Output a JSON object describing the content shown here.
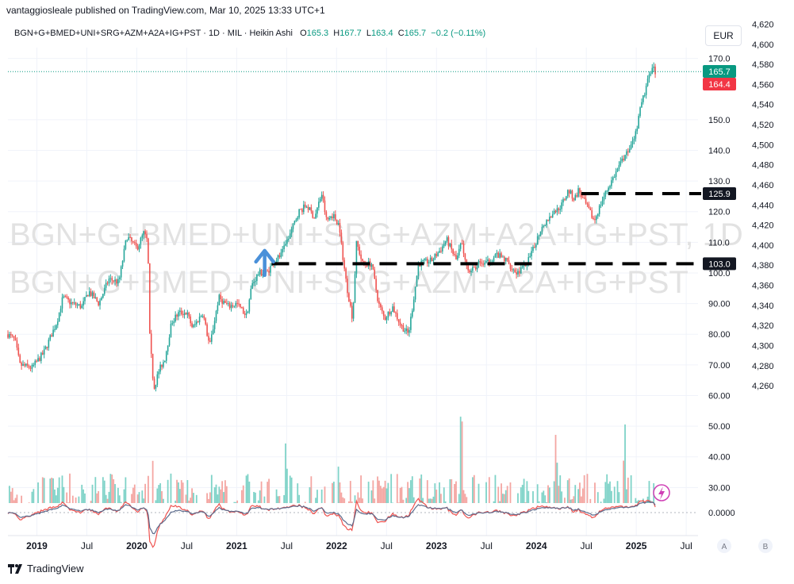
{
  "header": {
    "publish_line": "vantaggiosleale published on TradingView.com, Mar 10, 2025 13:33 UTC+1"
  },
  "legend": {
    "symbol": "BGN+G+BMED+UNI+SRG+AZM+A2A+IG+PST · 1D · MIL · Heikin Ashi",
    "open_label": "O",
    "open_value": "165.3",
    "high_label": "H",
    "high_value": "167.7",
    "low_label": "L",
    "low_value": "163.4",
    "close_label": "C",
    "close_value": "165.7",
    "change": "−0.2 (−0.11%)"
  },
  "currency": "EUR",
  "watermark": {
    "line1": "BGN+G+BMED+UNI+SRG+AZM+A2A+IG+PST, 1D",
    "line2": "BGN+G+BMED+UNI+SRG+AZM+A2A+IG+PST"
  },
  "footer": {
    "brand": "TradingView"
  },
  "colors": {
    "up": "#26a69a",
    "down": "#ef5350",
    "vol_up": "#7fd3c8",
    "vol_down": "#f4a6a2",
    "arrow": "#4a90d9",
    "last_price_line": "#089981"
  },
  "chart_data": {
    "type": "candlestick",
    "style": "Heikin Ashi",
    "timeframe": "1D",
    "exchange": "MIL",
    "currency": "EUR",
    "price_axis": {
      "labels": [
        "170.0",
        "150.0",
        "140.0",
        "130.0",
        "120.0",
        "110.0",
        "100.0",
        "90.00",
        "80.00",
        "70.00",
        "60.00",
        "50.00",
        "40.00",
        "30.00"
      ],
      "values": [
        170,
        150,
        140,
        130,
        120,
        110,
        100,
        90,
        80,
        70,
        60,
        50,
        40,
        30
      ]
    },
    "secondary_axis": {
      "labels": [
        "4,620",
        "4,600",
        "4,580",
        "4,560",
        "4,540",
        "4,520",
        "4,500",
        "4,480",
        "4,460",
        "4,440",
        "4,420",
        "4,400",
        "4,380",
        "4,360",
        "4,340",
        "4,320",
        "4,300",
        "4,280",
        "4,260"
      ],
      "values": [
        4620,
        4600,
        4580,
        4560,
        4540,
        4520,
        4500,
        4480,
        4460,
        4440,
        4420,
        4400,
        4380,
        4360,
        4340,
        4320,
        4300,
        4280,
        4260
      ]
    },
    "indicator_axis": {
      "labels": [
        "0.0000"
      ],
      "values": [
        0
      ]
    },
    "time_axis": {
      "labels": [
        "2019",
        "Jul",
        "2020",
        "Jul",
        "2021",
        "Jul",
        "2022",
        "Jul",
        "2023",
        "Jul",
        "2024",
        "Jul",
        "2025",
        "Jul"
      ],
      "t": [
        2019.0,
        2019.5,
        2020.0,
        2020.5,
        2021.0,
        2021.5,
        2022.0,
        2022.5,
        2023.0,
        2023.5,
        2024.0,
        2024.5,
        2025.0,
        2025.5
      ],
      "bold": [
        true,
        false,
        true,
        false,
        true,
        false,
        true,
        false,
        true,
        false,
        true,
        false,
        true,
        false
      ]
    },
    "price_path": {
      "t": [
        2018.71,
        2018.78,
        2018.83,
        2018.95,
        2019.07,
        2019.2,
        2019.26,
        2019.35,
        2019.45,
        2019.52,
        2019.62,
        2019.72,
        2019.82,
        2019.9,
        2020.0,
        2020.07,
        2020.11,
        2020.13,
        2020.17,
        2020.22,
        2020.28,
        2020.35,
        2020.42,
        2020.5,
        2020.56,
        2020.66,
        2020.73,
        2020.82,
        2020.92,
        2021.0,
        2021.1,
        2021.15,
        2021.22,
        2021.3,
        2021.38,
        2021.45,
        2021.55,
        2021.62,
        2021.7,
        2021.78,
        2021.85,
        2021.9,
        2021.96,
        2022.02,
        2022.1,
        2022.16,
        2022.2,
        2022.26,
        2022.35,
        2022.42,
        2022.48,
        2022.56,
        2022.64,
        2022.72,
        2022.76,
        2022.82,
        2022.95,
        2023.05,
        2023.1,
        2023.2,
        2023.25,
        2023.33,
        2023.42,
        2023.5,
        2023.6,
        2023.7,
        2023.8,
        2023.88,
        2023.95,
        2024.05,
        2024.15,
        2024.25,
        2024.32,
        2024.38,
        2024.42,
        2024.5,
        2024.58,
        2024.65,
        2024.72,
        2024.8,
        2024.88,
        2024.95,
        2025.0,
        2025.05,
        2025.12,
        2025.16,
        2025.19
      ],
      "close": [
        80,
        78,
        70,
        69,
        74,
        84,
        92,
        90,
        89,
        94,
        90,
        98,
        97,
        112,
        108,
        113,
        110,
        79,
        62,
        68,
        72,
        84,
        87,
        87,
        82,
        87,
        76,
        92,
        89,
        90,
        86,
        96,
        100,
        100,
        104,
        106,
        114,
        120,
        122,
        118,
        126,
        117,
        119,
        116,
        96,
        85,
        110,
        103,
        103,
        90,
        85,
        89,
        83,
        80,
        89,
        103,
        104,
        108,
        111,
        104,
        110,
        100,
        103,
        103,
        106,
        104,
        100,
        102,
        106,
        115,
        119,
        122,
        127,
        124,
        127,
        122,
        117,
        123,
        128,
        133,
        138,
        141,
        146,
        155,
        163,
        168,
        165.7
      ]
    },
    "horizontal_levels": [
      {
        "value": 125.9,
        "label": "125.9",
        "from_t": 2024.45,
        "style": "dashed"
      },
      {
        "value": 103.0,
        "label": "103.0",
        "from_t": 2021.35,
        "style": "dashed"
      }
    ],
    "price_tags": [
      {
        "label": "165.7",
        "value": 165.7,
        "color": "#089981"
      },
      {
        "label": "164.4",
        "value": 164.4,
        "color": "#f23645"
      }
    ],
    "annotations": [
      {
        "type": "arrow-up",
        "t": 2021.28,
        "value": 99.5
      }
    ],
    "volume": {
      "typical": 28,
      "max": 48,
      "spike_t": [
        2020.16,
        2021.5,
        2022.02,
        2023.25,
        2024.2,
        2024.88
      ]
    },
    "time_axis_buttons": [
      "A",
      "B"
    ]
  }
}
